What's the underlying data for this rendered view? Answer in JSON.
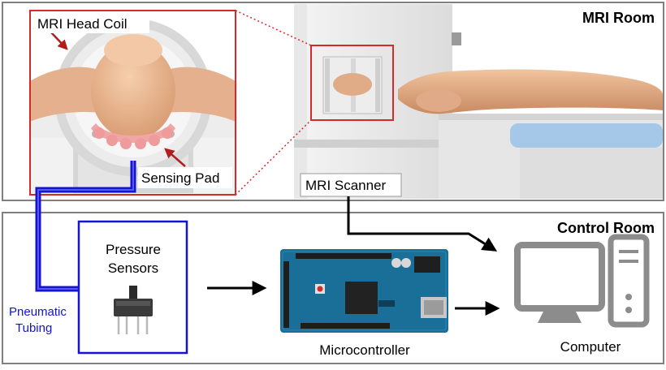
{
  "rooms": {
    "mri_room": "MRI Room",
    "control_room": "Control Room"
  },
  "labels": {
    "head_coil": "MRI Head Coil",
    "sensing_pad": "Sensing Pad",
    "mri_scanner": "MRI Scanner",
    "pressure_sensors_line1": "Pressure",
    "pressure_sensors_line2": "Sensors",
    "pneumatic_line1": "Pneumatic",
    "pneumatic_line2": "Tubing",
    "microcontroller": "Microcontroller",
    "computer": "Computer"
  },
  "colors": {
    "callout_red": "#d42a2a",
    "tubing_blue": "#1414d2",
    "frame_gray": "#7f7f7f",
    "skin": "#e8b58f",
    "arduino_blue": "#1a6f98",
    "computer_gray": "#8c8c8c",
    "table_blue": "#a6c8e8"
  },
  "icons": [
    "head-coil-illustration",
    "mri-scanner-illustration",
    "pressure-sensor-icon",
    "arduino-board-icon",
    "computer-icon"
  ]
}
